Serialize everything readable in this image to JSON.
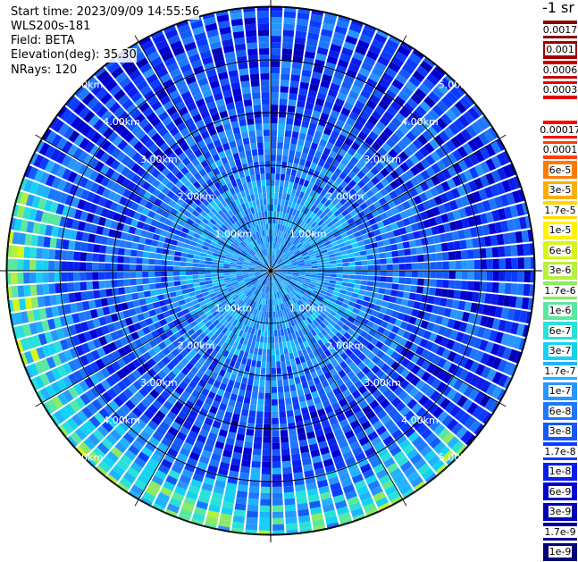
{
  "info": {
    "start_time": "Start time: 2023/09/09 14:55:56",
    "site": "WLS200s-181",
    "field": "Field: BETA",
    "elevation": "Elevation(deg): 35.30",
    "nrays": "NRays: 120"
  },
  "units": "-1 sr",
  "colorbar": {
    "top_group": [
      {
        "label": "0.0017",
        "color": "#8b0000"
      },
      {
        "label": "0.001",
        "color": "#a00000"
      },
      {
        "label": "0.0006",
        "color": "#c40000"
      },
      {
        "label": "0.0003",
        "color": "#e30000"
      }
    ],
    "main_group": [
      {
        "label": "0.00017",
        "color": "#ff0000"
      },
      {
        "label": "0.0001",
        "color": "#ff4000"
      },
      {
        "label": "6e-5",
        "color": "#ff7a00"
      },
      {
        "label": "3e-5",
        "color": "#ffae00"
      },
      {
        "label": "1.7e-5",
        "color": "#ffd800"
      },
      {
        "label": "1e-5",
        "color": "#fff200"
      },
      {
        "label": "6e-6",
        "color": "#d8f51a"
      },
      {
        "label": "3e-6",
        "color": "#b4f03c"
      },
      {
        "label": "1.7e-6",
        "color": "#8cea64"
      },
      {
        "label": "1e-6",
        "color": "#5ae8a0"
      },
      {
        "label": "6e-7",
        "color": "#2ae0d8"
      },
      {
        "label": "3e-7",
        "color": "#14d2f5"
      },
      {
        "label": "1.7e-7",
        "color": "#1eb4ff"
      },
      {
        "label": "1e-7",
        "color": "#2896ff"
      },
      {
        "label": "6e-8",
        "color": "#1e78ff"
      },
      {
        "label": "3e-8",
        "color": "#145af5"
      },
      {
        "label": "1.7e-8",
        "color": "#0a3cff"
      },
      {
        "label": "1e-8",
        "color": "#0a1eeb"
      },
      {
        "label": "6e-9",
        "color": "#0000d2"
      },
      {
        "label": "3e-9",
        "color": "#0000b4"
      },
      {
        "label": "1.7e-9",
        "color": "#000096"
      },
      {
        "label": "1e-9",
        "color": "#000078"
      }
    ]
  },
  "chart_data": {
    "type": "heatmap",
    "projection": "polar PPI",
    "rays": 120,
    "range_rings_km": [
      1,
      2,
      3,
      4,
      5
    ],
    "ring_labels": [
      "1.00km",
      "2.00km",
      "3.00km",
      "4.00km",
      "5.00km"
    ],
    "radial_spokes_deg": [
      0,
      30,
      60,
      90,
      120,
      150,
      180,
      210,
      240,
      270,
      300,
      330
    ],
    "field": "BETA",
    "elevation_deg": 35.3,
    "value_range": [
      1e-09,
      0.0017
    ],
    "dominant_values": {
      "center": "1e-7 to 3e-7",
      "mid": "1e-8 to 1e-7",
      "outer_south": "1e-6 to 3e-6"
    }
  }
}
